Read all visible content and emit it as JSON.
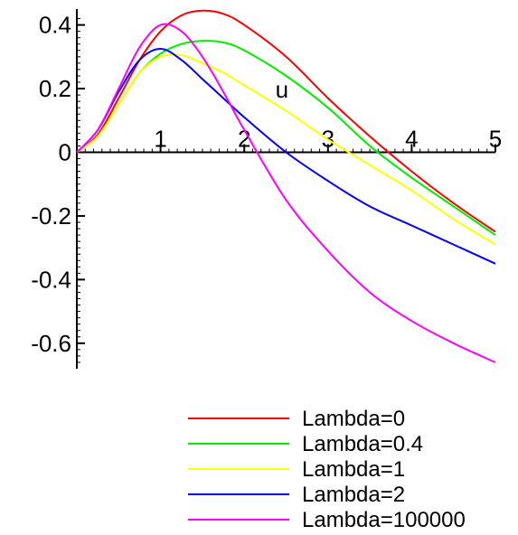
{
  "chart_data": {
    "type": "line",
    "xlabel": "u",
    "ylabel": "",
    "xlim": [
      0,
      5
    ],
    "ylim": [
      -0.68,
      0.45
    ],
    "xticks": [
      1,
      2,
      3,
      4,
      5
    ],
    "yticks": [
      0.4,
      0.2,
      0,
      -0.2,
      -0.4,
      -0.6
    ],
    "x_tick_labels": [
      "1",
      "2",
      "3",
      "4",
      "5"
    ],
    "y_tick_labels": [
      "0.4",
      "0.2",
      "0",
      "-0.2",
      "-0.4",
      "-0.6"
    ],
    "grid": false,
    "legend_position": "bottom",
    "series": [
      {
        "name": "Lambda=0",
        "color": "#ff0000",
        "x": [
          0,
          0.25,
          0.5,
          0.75,
          1.0,
          1.25,
          1.5,
          1.75,
          2.0,
          2.5,
          3.0,
          3.5,
          4.0,
          4.5,
          5.0
        ],
        "y": [
          0,
          0.055,
          0.17,
          0.29,
          0.38,
          0.43,
          0.445,
          0.435,
          0.4,
          0.3,
          0.17,
          0.05,
          -0.06,
          -0.16,
          -0.25
        ]
      },
      {
        "name": "Lambda=0.4",
        "color": "#00ee00",
        "x": [
          0,
          0.25,
          0.5,
          0.75,
          1.0,
          1.25,
          1.5,
          1.75,
          2.0,
          2.5,
          3.0,
          3.5,
          4.0,
          4.5,
          5.0
        ],
        "y": [
          0,
          0.05,
          0.15,
          0.25,
          0.31,
          0.34,
          0.35,
          0.345,
          0.32,
          0.24,
          0.14,
          0.02,
          -0.08,
          -0.17,
          -0.26
        ]
      },
      {
        "name": "Lambda=1",
        "color": "#ffff00",
        "x": [
          0,
          0.25,
          0.5,
          0.75,
          1.0,
          1.25,
          1.5,
          1.75,
          2.0,
          2.5,
          3.0,
          3.5,
          4.0,
          4.5,
          5.0
        ],
        "y": [
          0,
          0.05,
          0.15,
          0.25,
          0.3,
          0.305,
          0.28,
          0.25,
          0.21,
          0.13,
          0.04,
          -0.04,
          -0.12,
          -0.21,
          -0.29
        ]
      },
      {
        "name": "Lambda=2",
        "color": "#0000ff",
        "x": [
          0,
          0.25,
          0.5,
          0.75,
          1.0,
          1.25,
          1.5,
          1.75,
          2.0,
          2.5,
          3.0,
          3.5,
          4.0,
          4.5,
          5.0
        ],
        "y": [
          0,
          0.07,
          0.19,
          0.29,
          0.325,
          0.29,
          0.23,
          0.17,
          0.11,
          0.0,
          -0.09,
          -0.17,
          -0.23,
          -0.29,
          -0.35
        ]
      },
      {
        "name": "Lambda=100000",
        "color": "#ff00ff",
        "x": [
          0,
          0.25,
          0.5,
          0.75,
          1.0,
          1.25,
          1.5,
          1.75,
          2.0,
          2.5,
          3.0,
          3.5,
          4.0,
          4.5,
          5.0
        ],
        "y": [
          0,
          0.07,
          0.2,
          0.33,
          0.4,
          0.38,
          0.3,
          0.19,
          0.07,
          -0.15,
          -0.31,
          -0.44,
          -0.53,
          -0.6,
          -0.66
        ]
      }
    ]
  }
}
